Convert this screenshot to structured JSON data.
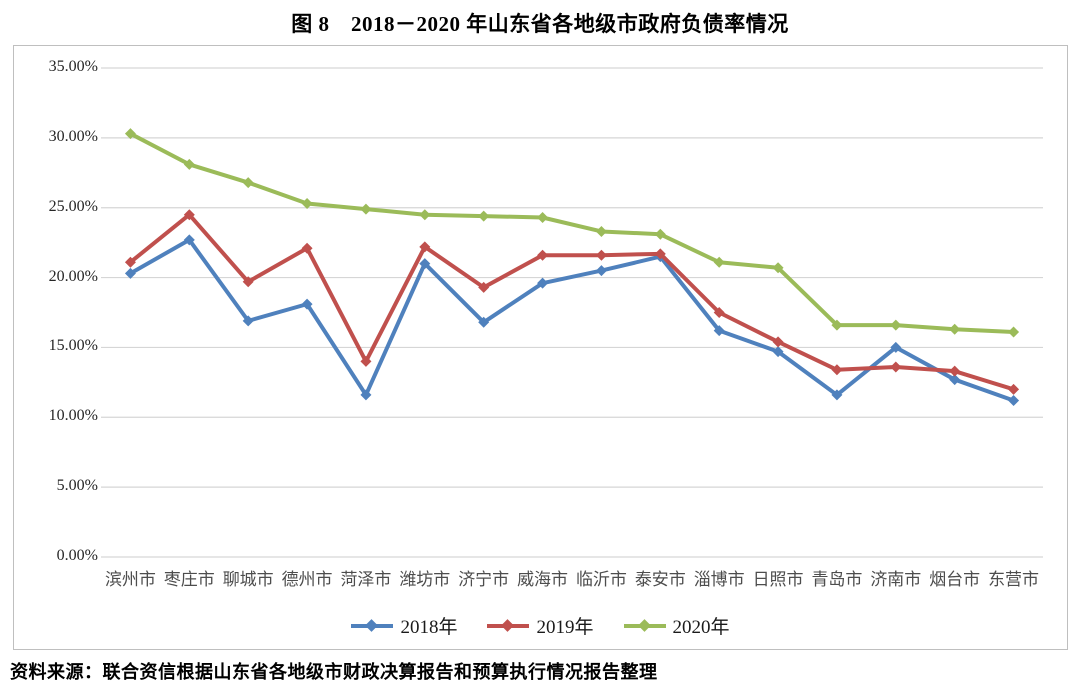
{
  "figure": {
    "title": "图 8　2018－2020 年山东省各地级市政府负债率情况",
    "source_note": "资料来源：联合资信根据山东省各地级市财政决算报告和预算执行情况报告整理"
  },
  "colors": {
    "series_2018": "#4F81BD",
    "series_2019": "#C0504D",
    "series_2020": "#9BBB59",
    "gridline": "#d6d6d6",
    "chart_border": "#bfbfbf"
  },
  "chart_data": {
    "type": "line",
    "title": "图 8　2018－2020 年山东省各地级市政府负债率情况",
    "xlabel": "",
    "ylabel": "",
    "ylim": [
      0,
      35
    ],
    "grid": true,
    "marker": "diamond",
    "legend_position": "bottom",
    "y_ticks": [
      {
        "value": 35,
        "label": "35.00%"
      },
      {
        "value": 30,
        "label": "30.00%"
      },
      {
        "value": 25,
        "label": "25.00%"
      },
      {
        "value": 20,
        "label": "20.00%"
      },
      {
        "value": 15,
        "label": "15.00%"
      },
      {
        "value": 10,
        "label": "10.00%"
      },
      {
        "value": 5,
        "label": "5.00%"
      },
      {
        "value": 0,
        "label": "0.00%"
      }
    ],
    "categories": [
      "滨州市",
      "枣庄市",
      "聊城市",
      "德州市",
      "菏泽市",
      "潍坊市",
      "济宁市",
      "威海市",
      "临沂市",
      "泰安市",
      "淄博市",
      "日照市",
      "青岛市",
      "济南市",
      "烟台市",
      "东营市"
    ],
    "series": [
      {
        "name": "2018年",
        "color_key": "series_2018",
        "values": [
          20.3,
          22.7,
          16.9,
          18.1,
          11.6,
          21.0,
          16.8,
          19.6,
          20.5,
          21.5,
          16.2,
          14.7,
          11.6,
          15.0,
          12.7,
          11.2
        ]
      },
      {
        "name": "2019年",
        "color_key": "series_2019",
        "values": [
          21.1,
          24.5,
          19.7,
          22.1,
          14.0,
          22.2,
          19.3,
          21.6,
          21.6,
          21.7,
          17.5,
          15.4,
          13.4,
          13.6,
          13.3,
          12.0
        ]
      },
      {
        "name": "2020年",
        "color_key": "series_2020",
        "values": [
          30.3,
          28.1,
          26.8,
          25.3,
          24.9,
          24.5,
          24.4,
          24.3,
          23.3,
          23.1,
          21.1,
          20.7,
          16.6,
          16.6,
          16.3,
          16.1
        ]
      }
    ]
  }
}
